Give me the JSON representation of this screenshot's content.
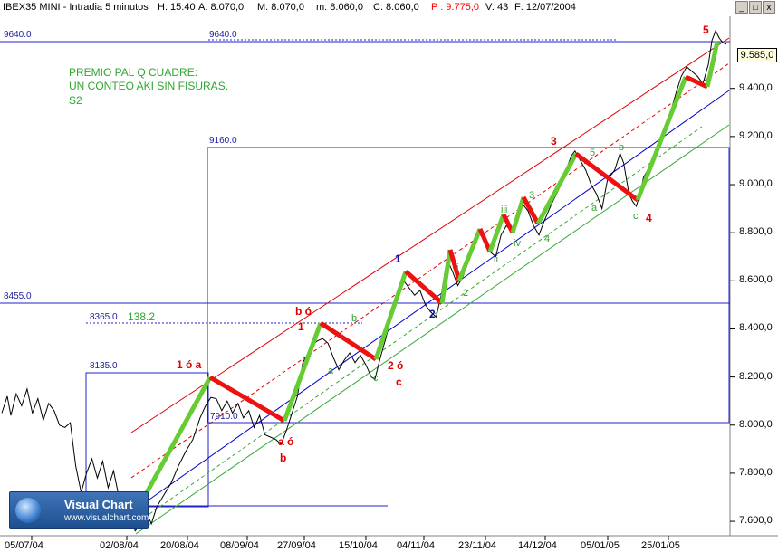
{
  "header": {
    "instrument": "IBEX35 MINI - Intradia 5 minutos",
    "hour": "H: 15:40",
    "open": "A: 8.070,0",
    "high": "M: 8.070,0",
    "low": "m: 8.060,0",
    "close": "C: 8.060,0",
    "p": "P : 9.775,0",
    "volume": "V: 43",
    "date": "F: 12/07/2004",
    "p_color": "#ff0000"
  },
  "window_buttons": {
    "minimize": "_",
    "maximize": "□",
    "close": "x"
  },
  "note": {
    "line1": "PREMIO PAL Q CUADRE:",
    "line2": "UN CONTEO AKI SIN FISURAS.",
    "line3": "S2"
  },
  "levels": {
    "l9640_left": "9640.0",
    "l9640_mid": "9640.0",
    "l9160": "9160.0",
    "l8455": "8455.0",
    "l8365": "8365.0",
    "l8365_extra": "138.2",
    "l8135": "8135.0",
    "l7910": "7910.0"
  },
  "last_price": "9.585,0",
  "labels": {
    "w1_or_a": "1 ó a",
    "a_or": "a ó",
    "b": "b",
    "b_or": "b ó",
    "one": "1",
    "two_or": "2 ó",
    "c_red": "c",
    "a_green1": "a",
    "b_green1": "b",
    "c_green1": "c",
    "w1_blue": "1",
    "w2_blue": "2",
    "two_green": "2",
    "i_green": "i",
    "ii_green": "ii",
    "iii_green": "iii",
    "iv_green": "iv",
    "four_green": "4",
    "three_green": "3",
    "w3": "3",
    "five_green": "5",
    "b_green2": "b",
    "a_green2": "a",
    "c_green2": "c",
    "w4": "4",
    "w5": "5"
  },
  "logo": {
    "title": "Visual Chart",
    "url": "www.visualchart.com"
  },
  "colors": {
    "price": "#000000",
    "impulse": "#66cc33",
    "correction": "#ee1111",
    "channel_red": "#e00000",
    "channel_blue": "#0000cc",
    "channel_green": "#33aa33",
    "level": "#2020a0"
  },
  "chart_data": {
    "type": "line",
    "title": "IBEX35 MINI - Intradia 5 minutos",
    "xlabel": "",
    "ylabel": "",
    "x_tick_labels": [
      "05/07/04",
      "02/08/04",
      "20/08/04",
      "08/09/04",
      "27/09/04",
      "15/10/04",
      "04/11/04",
      "23/11/04",
      "14/12/04",
      "05/01/05",
      "25/01/05"
    ],
    "y_tick_labels": [
      "7.600,0",
      "7.800,0",
      "8.000,0",
      "8.200,0",
      "8.400,0",
      "8.600,0",
      "8.800,0",
      "9.000,0",
      "9.200,0",
      "9.400,0",
      "9.585,0"
    ],
    "y_tick_values": [
      7600,
      7800,
      8000,
      8200,
      8400,
      8600,
      8800,
      9000,
      9200,
      9400
    ],
    "ylim": [
      7540,
      9700
    ],
    "grid": false,
    "series": [
      {
        "values": [
          [
            0,
            8050
          ],
          [
            6,
            8120
          ],
          [
            10,
            8040
          ],
          [
            16,
            8130
          ],
          [
            22,
            8080
          ],
          [
            28,
            8150
          ],
          [
            34,
            8050
          ],
          [
            40,
            8110
          ],
          [
            46,
            8020
          ],
          [
            52,
            8090
          ],
          [
            58,
            8060
          ],
          [
            64,
            8000
          ],
          [
            70,
            7990
          ],
          [
            76,
            8010
          ],
          [
            82,
            7830
          ],
          [
            88,
            7720
          ],
          [
            94,
            7800
          ],
          [
            100,
            7860
          ],
          [
            106,
            7780
          ],
          [
            112,
            7850
          ],
          [
            118,
            7740
          ],
          [
            124,
            7810
          ],
          [
            130,
            7700
          ],
          [
            136,
            7580
          ],
          [
            142,
            7610
          ],
          [
            148,
            7560
          ],
          [
            154,
            7590
          ],
          [
            160,
            7640
          ],
          [
            166,
            7590
          ],
          [
            172,
            7660
          ],
          [
            180,
            7710
          ],
          [
            188,
            7760
          ],
          [
            196,
            7830
          ],
          [
            204,
            7890
          ],
          [
            212,
            7940
          ],
          [
            220,
            8030
          ],
          [
            226,
            8080
          ],
          [
            232,
            8115
          ],
          [
            238,
            8110
          ],
          [
            244,
            8060
          ],
          [
            250,
            8100
          ],
          [
            256,
            8050
          ],
          [
            262,
            8090
          ],
          [
            268,
            8030
          ],
          [
            274,
            8060
          ],
          [
            280,
            7990
          ],
          [
            286,
            8040
          ],
          [
            292,
            7960
          ],
          [
            298,
            7950
          ],
          [
            304,
            7940
          ],
          [
            310,
            7920
          ],
          [
            316,
            7980
          ],
          [
            322,
            8050
          ],
          [
            328,
            8120
          ],
          [
            334,
            8260
          ],
          [
            340,
            8300
          ],
          [
            344,
            8330
          ],
          [
            350,
            8350
          ],
          [
            356,
            8360
          ],
          [
            362,
            8340
          ],
          [
            368,
            8280
          ],
          [
            374,
            8230
          ],
          [
            380,
            8270
          ],
          [
            386,
            8300
          ],
          [
            392,
            8260
          ],
          [
            398,
            8290
          ],
          [
            404,
            8250
          ],
          [
            410,
            8200
          ],
          [
            414,
            8190
          ],
          [
            420,
            8280
          ],
          [
            426,
            8360
          ],
          [
            432,
            8450
          ],
          [
            440,
            8560
          ],
          [
            446,
            8600
          ],
          [
            452,
            8570
          ],
          [
            458,
            8540
          ],
          [
            464,
            8560
          ],
          [
            470,
            8500
          ],
          [
            476,
            8470
          ],
          [
            482,
            8450
          ],
          [
            488,
            8550
          ],
          [
            494,
            8690
          ],
          [
            500,
            8640
          ],
          [
            506,
            8580
          ],
          [
            512,
            8620
          ],
          [
            518,
            8700
          ],
          [
            524,
            8760
          ],
          [
            530,
            8800
          ],
          [
            536,
            8770
          ],
          [
            542,
            8720
          ],
          [
            548,
            8700
          ],
          [
            554,
            8790
          ],
          [
            560,
            8830
          ],
          [
            566,
            8800
          ],
          [
            572,
            8850
          ],
          [
            578,
            8920
          ],
          [
            584,
            8890
          ],
          [
            590,
            8830
          ],
          [
            596,
            8790
          ],
          [
            602,
            8850
          ],
          [
            610,
            8920
          ],
          [
            618,
            8980
          ],
          [
            626,
            9060
          ],
          [
            632,
            9120
          ],
          [
            636,
            9140
          ],
          [
            642,
            9100
          ],
          [
            648,
            9060
          ],
          [
            654,
            9000
          ],
          [
            660,
            8960
          ],
          [
            666,
            8900
          ],
          [
            672,
            9020
          ],
          [
            680,
            9060
          ],
          [
            686,
            9130
          ],
          [
            690,
            9090
          ],
          [
            696,
            8960
          ],
          [
            700,
            8930
          ],
          [
            704,
            8910
          ],
          [
            708,
            8960
          ],
          [
            712,
            9030
          ],
          [
            718,
            9070
          ],
          [
            724,
            9100
          ],
          [
            730,
            9160
          ],
          [
            736,
            9230
          ],
          [
            742,
            9300
          ],
          [
            748,
            9380
          ],
          [
            754,
            9450
          ],
          [
            760,
            9490
          ],
          [
            766,
            9470
          ],
          [
            772,
            9450
          ],
          [
            778,
            9420
          ],
          [
            784,
            9500
          ],
          [
            788,
            9600
          ],
          [
            792,
            9640
          ],
          [
            796,
            9610
          ],
          [
            800,
            9590
          ],
          [
            804,
            9585
          ]
        ]
      }
    ]
  }
}
